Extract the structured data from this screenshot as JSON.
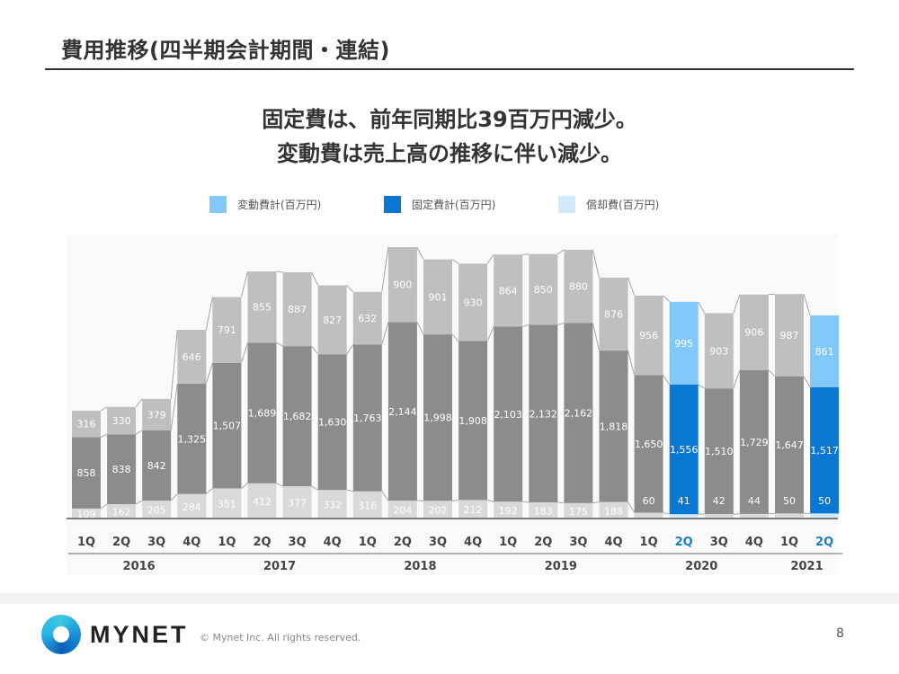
{
  "page": {
    "title": "費用推移(四半期会計期間・連結)",
    "headline_1": "固定費は、前年同期比39百万円減少。",
    "headline_2": "変動費は売上高の推移に伴い減少。",
    "copyright": "© Mynet Inc. All rights reserved.",
    "logo_text": "MYNET",
    "page_number": "8"
  },
  "colors": {
    "variable_gray": "#bfbfbf",
    "fixed_gray": "#8c8c8c",
    "amort_gray": "#d9d9d9",
    "variable_blue": "#82c8fa",
    "fixed_blue": "#0a78d2",
    "amort_blue": "#d2ebfc",
    "highlight_label": "#1a7fc8"
  },
  "chart_data": {
    "type": "bar",
    "stacked": true,
    "title": "",
    "xlabel": "",
    "ylabel": "",
    "legend_position": "top",
    "grid": false,
    "categories": [
      "1Q",
      "2Q",
      "3Q",
      "4Q",
      "1Q",
      "2Q",
      "3Q",
      "4Q",
      "1Q",
      "2Q",
      "3Q",
      "4Q",
      "1Q",
      "2Q",
      "3Q",
      "4Q",
      "1Q",
      "2Q",
      "3Q",
      "4Q",
      "1Q",
      "2Q"
    ],
    "groups": [
      {
        "label": "2016",
        "count": 4
      },
      {
        "label": "2017",
        "count": 4
      },
      {
        "label": "2018",
        "count": 4
      },
      {
        "label": "2019",
        "count": 4
      },
      {
        "label": "2020",
        "count": 4
      },
      {
        "label": "2021",
        "count": 2
      }
    ],
    "highlighted_indices": [
      17,
      21
    ],
    "series": [
      {
        "name": "償却費(百万円)",
        "key": "amort",
        "values": [
          109,
          162,
          205,
          284,
          351,
          412,
          377,
          332,
          316,
          204,
          202,
          212,
          192,
          183,
          175,
          188,
          60,
          41,
          42,
          44,
          50,
          50
        ]
      },
      {
        "name": "固定費計(百万円)",
        "key": "fixed",
        "values": [
          858,
          838,
          842,
          1325,
          1507,
          1689,
          1682,
          1630,
          1763,
          2144,
          1998,
          1908,
          2103,
          2132,
          2162,
          1818,
          1650,
          1556,
          1510,
          1729,
          1647,
          1517
        ]
      },
      {
        "name": "変動費計(百万円)",
        "key": "variable",
        "values": [
          316,
          330,
          379,
          646,
          791,
          855,
          887,
          827,
          632,
          900,
          901,
          930,
          864,
          850,
          880,
          876,
          956,
          995,
          903,
          906,
          987,
          861
        ]
      }
    ],
    "legend": [
      {
        "label": "変動費計(百万円)",
        "key": "variable"
      },
      {
        "label": "固定費計(百万円)",
        "key": "fixed"
      },
      {
        "label": "償却費(百万円)",
        "key": "amort"
      }
    ],
    "ylim": [
      0,
      3300
    ]
  }
}
